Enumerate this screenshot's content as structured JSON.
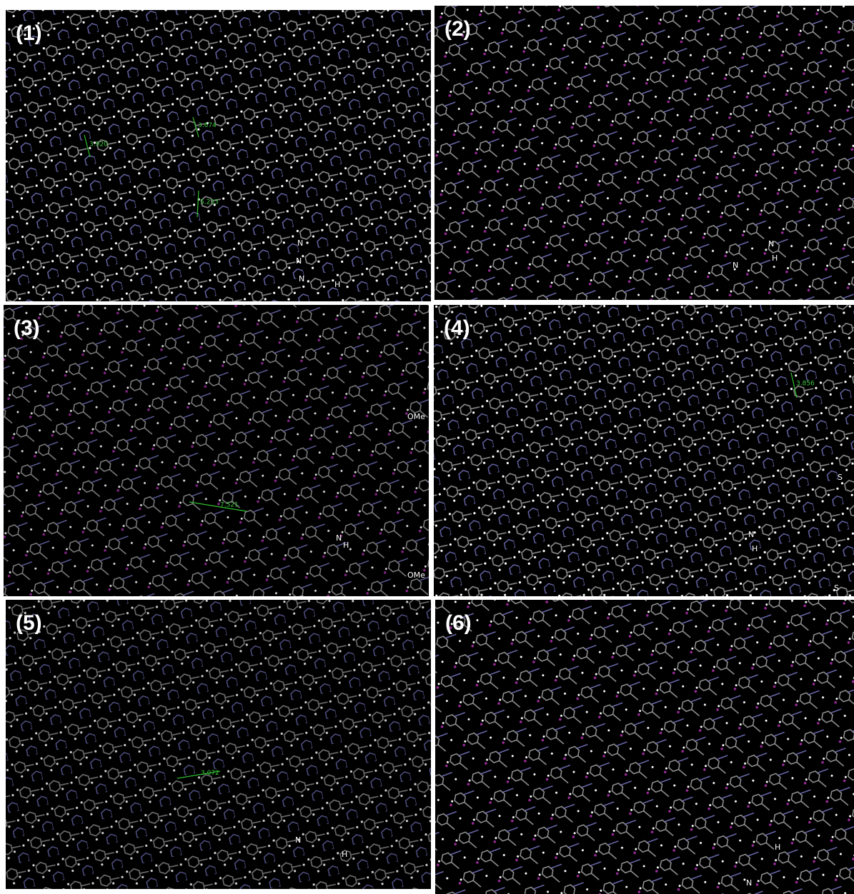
{
  "panels": [
    {
      "label": "(1)",
      "distances": [
        "3.920",
        "3.674",
        "5.233"
      ],
      "atoms": [
        "N",
        "N",
        "N",
        "H"
      ]
    },
    {
      "label": "(2)",
      "distances": [],
      "atoms": [
        "N",
        "N",
        "H"
      ]
    },
    {
      "label": "(3)",
      "distances": [
        "7.521"
      ],
      "atoms": [
        "OMe",
        "OMe",
        "N",
        "H"
      ]
    },
    {
      "label": "(4)",
      "distances": [
        "3.856"
      ],
      "atoms": [
        "S",
        "S",
        "N",
        "H"
      ]
    },
    {
      "label": "(5)",
      "distances": [
        "3.072"
      ],
      "atoms": [
        "N",
        "H"
      ]
    },
    {
      "label": "(6)",
      "distances": [],
      "atoms": [
        "N",
        "H"
      ]
    }
  ]
}
